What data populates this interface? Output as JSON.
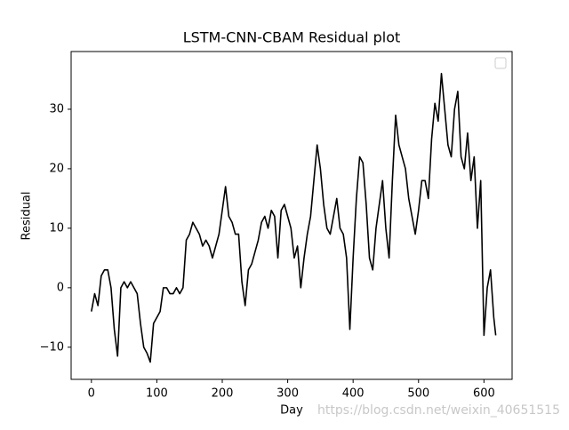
{
  "chart_data": {
    "type": "line",
    "title": "LSTM-CNN-CBAM Residual plot",
    "x_label": "Day",
    "y_label": "Residual",
    "watermark": "https://blog.csdn.net/weixin_40651515",
    "x": [
      0,
      5,
      10,
      15,
      20,
      25,
      30,
      35,
      40,
      45,
      50,
      55,
      60,
      65,
      70,
      75,
      80,
      85,
      90,
      95,
      100,
      105,
      110,
      115,
      120,
      125,
      130,
      135,
      140,
      145,
      150,
      155,
      160,
      165,
      170,
      175,
      180,
      185,
      190,
      195,
      200,
      205,
      210,
      215,
      220,
      225,
      230,
      235,
      240,
      245,
      250,
      255,
      260,
      265,
      270,
      275,
      280,
      285,
      290,
      295,
      300,
      305,
      310,
      315,
      320,
      325,
      330,
      335,
      340,
      345,
      350,
      355,
      360,
      365,
      370,
      375,
      380,
      385,
      390,
      395,
      400,
      405,
      410,
      415,
      420,
      425,
      430,
      435,
      440,
      445,
      450,
      455,
      460,
      465,
      470,
      475,
      480,
      485,
      490,
      495,
      500,
      505,
      510,
      515,
      520,
      525,
      530,
      535,
      540,
      545,
      550,
      555,
      560,
      565,
      570,
      575,
      580,
      585,
      590,
      595,
      600,
      605,
      610,
      615,
      618
    ],
    "series": [
      {
        "name": "Residual",
        "color": "#000000",
        "values": [
          -4,
          -1,
          -3,
          2,
          3,
          3,
          0,
          -7,
          -11.5,
          0,
          1,
          0,
          1,
          0,
          -1,
          -6,
          -10,
          -11,
          -12.5,
          -6,
          -5,
          -4,
          0,
          0,
          -1,
          -1,
          0,
          -1,
          0,
          8,
          9,
          11,
          10,
          9,
          7,
          8,
          7,
          5,
          7,
          9,
          13,
          17,
          12,
          11,
          9,
          9,
          1,
          -3,
          3,
          4,
          6,
          8,
          11,
          12,
          10,
          13,
          12,
          5,
          13,
          14,
          12,
          10,
          5,
          7,
          0,
          5,
          9,
          12,
          18,
          24,
          20,
          14,
          10,
          9,
          12,
          15,
          10,
          9,
          5,
          -7,
          5,
          15,
          22,
          21,
          14,
          5,
          3,
          10,
          14,
          18,
          10,
          5,
          18,
          29,
          24,
          22,
          20,
          15,
          12,
          9,
          13,
          18,
          18,
          15,
          25,
          31,
          28,
          36,
          30,
          24,
          22,
          30,
          33,
          22,
          20,
          26,
          18,
          22,
          10,
          18,
          -8,
          0,
          3,
          -5,
          -8
        ]
      }
    ],
    "xlim": [
      -31,
      643
    ],
    "ylim": [
      -15.4,
      39.7
    ],
    "xticks": [
      0,
      100,
      200,
      300,
      400,
      500,
      600
    ],
    "yticks": [
      {
        "value": -10,
        "label": "−10"
      },
      0,
      10,
      20,
      30
    ],
    "legend": "upper right"
  }
}
